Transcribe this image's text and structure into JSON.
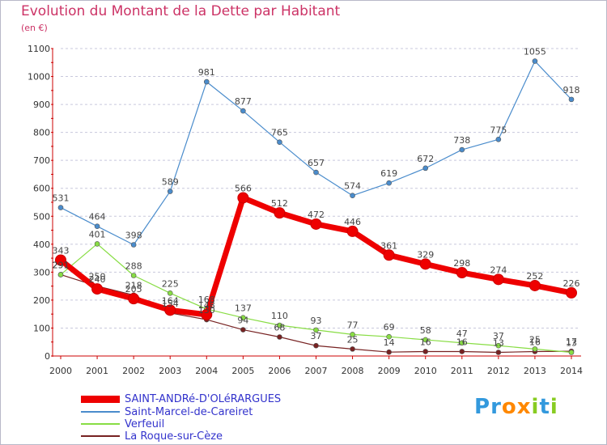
{
  "header": {
    "title": "Evolution du Montant de la Dette par Habitant",
    "subtitle": "(en €)"
  },
  "colors": {
    "title": "#cc3366",
    "axis": "#cc0000",
    "grid": "#c8c8dc",
    "legend_text": "#3333cc"
  },
  "chart_data": {
    "type": "line",
    "title": "Evolution du Montant de la Dette par Habitant",
    "ylabel": "(en €)",
    "xlabel": "",
    "ylim": [
      0,
      1100
    ],
    "yticks": [
      "0",
      "100",
      "200",
      "300",
      "400",
      "500",
      "600",
      "700",
      "800",
      "900",
      "1000",
      "1100"
    ],
    "categories": [
      "2000",
      "2001",
      "2002",
      "2003",
      "2004",
      "2005",
      "2006",
      "2007",
      "2008",
      "2009",
      "2010",
      "2011",
      "2012",
      "2013",
      "2014"
    ],
    "grid": "horizontal dashed",
    "legend_position": "bottom-left",
    "series": [
      {
        "name": "SAINT-ANDRé-D'OLéRARGUES",
        "color": "#ee0000",
        "values": [
          343,
          240,
          205,
          164,
          148,
          566,
          512,
          472,
          446,
          361,
          329,
          298,
          274,
          252,
          226
        ],
        "labels": [
          "343",
          "240",
          "205",
          "164",
          "148",
          "566",
          "512",
          "472",
          "446",
          "361",
          "329",
          "298",
          "274",
          "252",
          "226"
        ]
      },
      {
        "name": "Saint-Marcel-de-Careiret",
        "color": "#4a8ccc",
        "values": [
          531,
          464,
          398,
          589,
          981,
          877,
          765,
          657,
          574,
          619,
          672,
          738,
          775,
          1055,
          918
        ],
        "labels": [
          "531",
          "464",
          "398",
          "589",
          "981",
          "877",
          "765",
          "657",
          "574",
          "619",
          "672",
          "738",
          "775",
          "1055",
          "918"
        ]
      },
      {
        "name": "Verfeuil",
        "color": "#88dd44",
        "values": [
          291,
          401,
          288,
          225,
          168,
          137,
          110,
          93,
          77,
          69,
          58,
          47,
          37,
          25,
          13
        ],
        "labels": [
          "291",
          "401",
          "288",
          "225",
          "168",
          "137",
          "110",
          "93",
          "77",
          "69",
          "58",
          "47",
          "37",
          "25",
          "13"
        ]
      },
      {
        "name": "La Roque-sur-Cèze",
        "color": "#772222",
        "values": [
          291,
          250,
          218,
          154,
          130,
          94,
          68,
          37,
          25,
          14,
          16,
          16,
          13,
          16,
          17
        ],
        "labels": [
          "291",
          "250",
          "218",
          "154",
          "130",
          "94",
          "68",
          "37",
          "25",
          "14",
          "16",
          "16",
          "13",
          "16",
          "17"
        ]
      }
    ]
  },
  "legend": {
    "items": [
      "SAINT-ANDRé-D'OLéRARGUES",
      "Saint-Marcel-de-Careiret",
      "Verfeuil",
      "La Roque-sur-Cèze"
    ]
  },
  "logo": {
    "text": "Proxiti",
    "letters": [
      "P",
      "r",
      "o",
      "x",
      "i",
      "t",
      "i"
    ],
    "colors": [
      "#3399dd",
      "#3399dd",
      "#ff8800",
      "#ff8800",
      "#88cc22",
      "#3399dd",
      "#88cc22"
    ]
  }
}
